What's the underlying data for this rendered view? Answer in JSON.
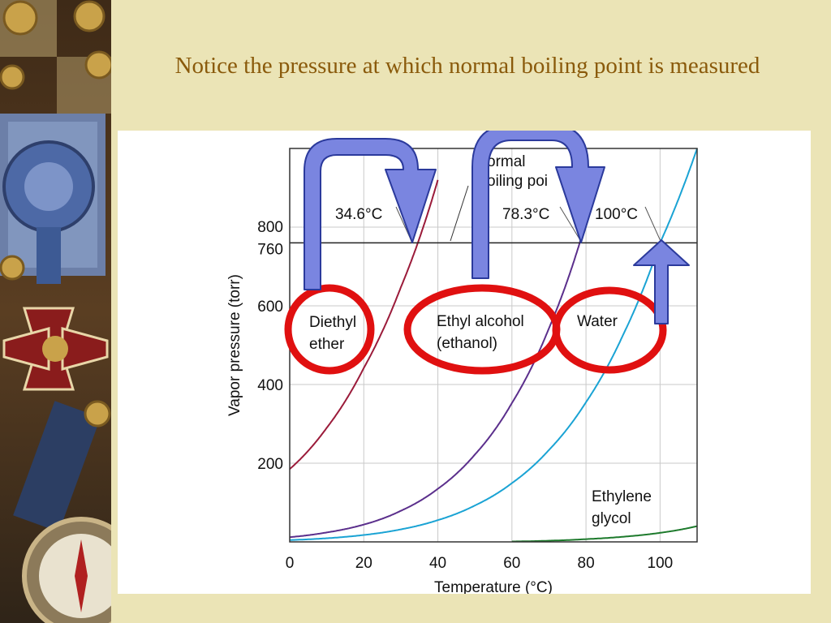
{
  "slide": {
    "title": "Notice the pressure at which normal boiling point is measured"
  },
  "chart_data": {
    "type": "line",
    "xlabel": "Temperature (°C)",
    "ylabel": "Vapor pressure (torr)",
    "xlim": [
      0,
      110
    ],
    "ylim": [
      0,
      1000
    ],
    "x_ticks": [
      0,
      20,
      40,
      60,
      80,
      100
    ],
    "y_ticks": [
      200,
      400,
      600,
      760,
      800
    ],
    "grid": true,
    "reference_line": {
      "y": 760,
      "label": "Normal boiling point",
      "label_visible": "ormal\noiling poi"
    },
    "series": [
      {
        "name": "Diethyl ether",
        "label": "Diethyl\nether",
        "color": "#9b1b3a",
        "x": [
          0,
          10,
          20,
          30,
          34.6,
          40
        ],
        "y": [
          185,
          290,
          442,
          647,
          760,
          920
        ]
      },
      {
        "name": "Ethyl alcohol (ethanol)",
        "label": "Ethyl alcohol\n(ethanol)",
        "color": "#5b2f8c",
        "x": [
          0,
          10,
          20,
          30,
          40,
          50,
          60,
          70,
          78.3,
          83
        ],
        "y": [
          12,
          24,
          44,
          79,
          135,
          222,
          353,
          543,
          760,
          920
        ]
      },
      {
        "name": "Water",
        "label": "Water",
        "color": "#1aa3d4",
        "x": [
          0,
          10,
          20,
          30,
          40,
          50,
          60,
          70,
          80,
          90,
          100,
          110
        ],
        "y": [
          4.6,
          9.2,
          17.5,
          31.8,
          55.3,
          92.5,
          149.4,
          233.7,
          355.1,
          525.8,
          760,
          1000
        ]
      },
      {
        "name": "Ethylene glycol",
        "label": "Ethylene\nglycol",
        "color": "#1d7a2c",
        "x": [
          60,
          70,
          80,
          90,
          100,
          110
        ],
        "y": [
          1,
          3,
          7,
          13,
          23,
          40
        ]
      }
    ],
    "annotations": [
      {
        "text": "34.6°C",
        "x": 34.6,
        "y": 760
      },
      {
        "text": "78.3°C",
        "x": 78.3,
        "y": 760
      },
      {
        "text": "100°C",
        "x": 100,
        "y": 760
      }
    ],
    "overlays": {
      "red_circles": [
        "Diethyl ether",
        "Ethyl alcohol (ethanol)",
        "Water"
      ],
      "blue_arrows": 3,
      "arrow_color": "#7a85e0",
      "circle_color": "#e01010"
    }
  },
  "colors": {
    "background": "#ebe4b6",
    "title": "#8a5a0b",
    "grid": "#bdbdbd"
  }
}
